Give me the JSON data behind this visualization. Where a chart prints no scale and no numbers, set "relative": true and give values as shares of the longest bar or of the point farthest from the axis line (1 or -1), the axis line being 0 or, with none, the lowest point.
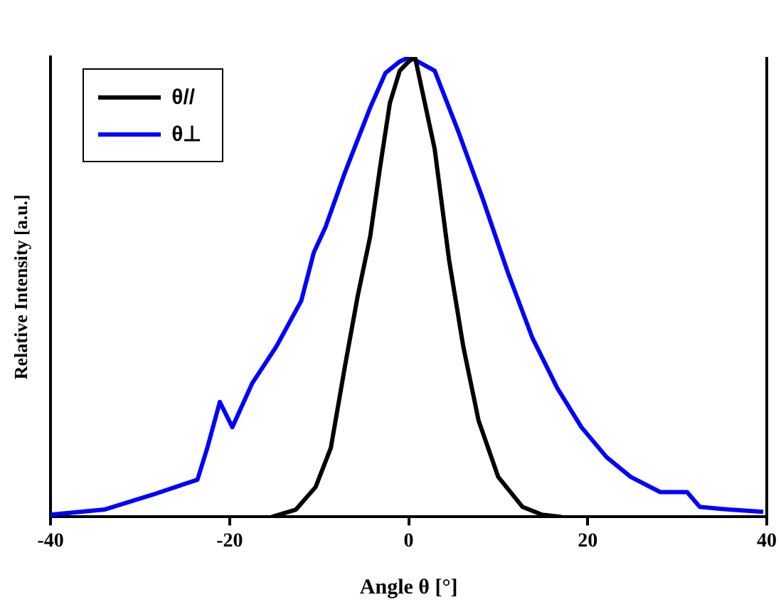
{
  "chart_data": {
    "type": "line",
    "xlabel": "Angle θ [°]",
    "ylabel": "Relative Intensity [a.u.]",
    "relative": true,
    "xlim": [
      -40,
      40
    ],
    "xticks": [
      -40,
      -20,
      0,
      20,
      40
    ],
    "legend": "top left",
    "marker": "none",
    "line_style": "solid",
    "grid": false,
    "series": [
      {
        "name": "θ//",
        "color": "#000000",
        "x": [
          -15.3,
          -12.6,
          -10.4,
          -8.7,
          -7.1,
          -5.7,
          -4.3,
          -3.2,
          -2.1,
          -1.0,
          0,
          0.7,
          2.9,
          4.5,
          6.1,
          7.8,
          10.0,
          12.7,
          14.9,
          17.1
        ],
        "values": [
          0,
          0.016,
          0.065,
          0.15,
          0.33,
          0.48,
          0.61,
          0.76,
          0.9,
          0.97,
          0.99,
          1.0,
          0.8,
          0.56,
          0.37,
          0.21,
          0.087,
          0.022,
          0.005,
          0
        ]
      },
      {
        "name": "θ⊥",
        "color": "#0000ff",
        "x": [
          -40,
          -34,
          -28.5,
          -23.6,
          -22.5,
          -21.1,
          -19.7,
          -17.5,
          -14.8,
          -12.0,
          -10.6,
          -9.3,
          -7.1,
          -4.3,
          -2.6,
          -1.0,
          0.1,
          2.9,
          5.6,
          8.3,
          11.1,
          13.8,
          16.6,
          19.3,
          22.1,
          24.8,
          28.1,
          31.1,
          32.5,
          35.8,
          39.6
        ],
        "values": [
          0.005,
          0.016,
          0.049,
          0.081,
          0.15,
          0.25,
          0.195,
          0.29,
          0.37,
          0.47,
          0.575,
          0.63,
          0.75,
          0.89,
          0.965,
          0.99,
          1.0,
          0.97,
          0.835,
          0.69,
          0.53,
          0.39,
          0.28,
          0.195,
          0.13,
          0.087,
          0.054,
          0.054,
          0.022,
          0.016,
          0.011
        ]
      }
    ]
  }
}
